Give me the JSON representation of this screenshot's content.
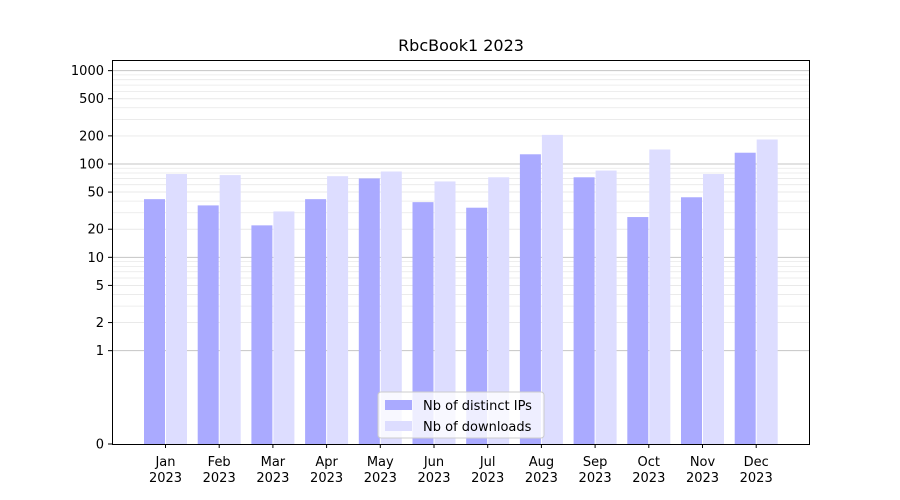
{
  "chart_data": {
    "type": "bar",
    "title": "RbcBook1 2023",
    "xlabel": "",
    "ylabel": "",
    "y_scale": "symlog",
    "ylim": [
      0,
      1300
    ],
    "yticks": [
      0,
      1,
      2,
      5,
      10,
      20,
      50,
      100,
      200,
      500,
      1000
    ],
    "categories": [
      [
        "Jan",
        "2023"
      ],
      [
        "Feb",
        "2023"
      ],
      [
        "Mar",
        "2023"
      ],
      [
        "Apr",
        "2023"
      ],
      [
        "May",
        "2023"
      ],
      [
        "Jun",
        "2023"
      ],
      [
        "Jul",
        "2023"
      ],
      [
        "Aug",
        "2023"
      ],
      [
        "Sep",
        "2023"
      ],
      [
        "Oct",
        "2023"
      ],
      [
        "Nov",
        "2023"
      ],
      [
        "Dec",
        "2023"
      ]
    ],
    "series": [
      {
        "name": "Nb of distinct IPs",
        "color": "#aaaaff",
        "values": [
          42,
          36,
          22,
          42,
          70,
          39,
          34,
          127,
          72,
          27,
          44,
          132
        ]
      },
      {
        "name": "Nb of downloads",
        "color": "#ddddff",
        "values": [
          78,
          76,
          31,
          74,
          83,
          65,
          72,
          205,
          85,
          143,
          78,
          183
        ]
      }
    ],
    "grid": true,
    "legend_position": "lower center"
  }
}
